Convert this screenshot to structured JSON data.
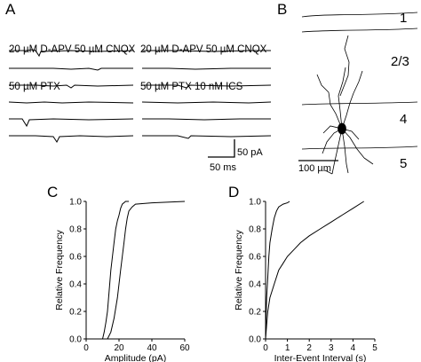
{
  "panels": {
    "A": {
      "letter": "A",
      "left_condition": {
        "line1": "20 µM D-APV 50 µM CNQX",
        "line2": "50 µM PTX"
      },
      "right_condition": {
        "line1": "20 µM D-APV 50 µM CNQX",
        "line2": "50 µM PTX 10 nM ICS"
      },
      "scale_current": "50 pA",
      "scale_time": "50 ms"
    },
    "B": {
      "letter": "B",
      "layers": [
        "1",
        "2/3",
        "4",
        "5"
      ],
      "scale_label": "100 µm"
    },
    "C": {
      "letter": "C"
    },
    "D": {
      "letter": "D"
    }
  },
  "chart_data": [
    {
      "type": "line",
      "panel": "C",
      "xlabel": "Amplitude (pA)",
      "ylabel": "Relative Frequency",
      "xlim": [
        0,
        60
      ],
      "ylim": [
        0,
        1.0
      ],
      "xticks": [
        0,
        20,
        40,
        60
      ],
      "yticks": [
        0,
        0.2,
        0.4,
        0.6,
        0.8,
        1.0
      ],
      "ytick_labels": [
        "0.0",
        "0.2",
        "0.4",
        "0.6",
        "0.8",
        "1.0"
      ],
      "series": [
        {
          "points": [
            [
              10,
              0
            ],
            [
              11,
              0.05
            ],
            [
              12,
              0.12
            ],
            [
              13,
              0.2
            ],
            [
              14,
              0.35
            ],
            [
              15,
              0.5
            ],
            [
              16,
              0.6
            ],
            [
              17,
              0.7
            ],
            [
              18,
              0.8
            ],
            [
              19,
              0.86
            ],
            [
              20,
              0.9
            ],
            [
              21,
              0.95
            ],
            [
              22,
              0.98
            ],
            [
              24,
              1.0
            ],
            [
              26,
              1.0
            ]
          ]
        },
        {
          "points": [
            [
              13,
              0
            ],
            [
              15,
              0.05
            ],
            [
              17,
              0.15
            ],
            [
              19,
              0.3
            ],
            [
              20,
              0.4
            ],
            [
              21,
              0.5
            ],
            [
              22,
              0.6
            ],
            [
              23,
              0.7
            ],
            [
              24,
              0.8
            ],
            [
              25,
              0.88
            ],
            [
              26,
              0.93
            ],
            [
              28,
              0.96
            ],
            [
              30,
              0.98
            ],
            [
              40,
              0.99
            ],
            [
              60,
              1.0
            ]
          ]
        }
      ]
    },
    {
      "type": "line",
      "panel": "D",
      "xlabel": "Inter-Event Interval (s)",
      "ylabel": "Relative Frequency",
      "xlim": [
        0,
        5
      ],
      "ylim": [
        0,
        1.0
      ],
      "xticks": [
        0,
        1,
        2,
        3,
        4,
        5
      ],
      "yticks": [
        0,
        0.2,
        0.4,
        0.6,
        0.8,
        1.0
      ],
      "ytick_labels": [
        "0.0",
        "0.2",
        "0.4",
        "0.6",
        "0.8",
        "1.0"
      ],
      "series": [
        {
          "points": [
            [
              0,
              0
            ],
            [
              0.02,
              0.15
            ],
            [
              0.05,
              0.3
            ],
            [
              0.1,
              0.45
            ],
            [
              0.15,
              0.6
            ],
            [
              0.2,
              0.7
            ],
            [
              0.3,
              0.8
            ],
            [
              0.4,
              0.88
            ],
            [
              0.5,
              0.93
            ],
            [
              0.6,
              0.96
            ],
            [
              0.8,
              0.98
            ],
            [
              1.0,
              0.99
            ],
            [
              1.1,
              1.0
            ]
          ]
        },
        {
          "points": [
            [
              0,
              0
            ],
            [
              0.05,
              0.1
            ],
            [
              0.1,
              0.2
            ],
            [
              0.2,
              0.3
            ],
            [
              0.4,
              0.4
            ],
            [
              0.6,
              0.5
            ],
            [
              0.8,
              0.55
            ],
            [
              1.0,
              0.6
            ],
            [
              1.3,
              0.65
            ],
            [
              1.6,
              0.7
            ],
            [
              2.0,
              0.75
            ],
            [
              2.5,
              0.8
            ],
            [
              3.0,
              0.85
            ],
            [
              3.5,
              0.9
            ],
            [
              4.0,
              0.95
            ],
            [
              4.5,
              1.0
            ]
          ]
        }
      ]
    }
  ]
}
